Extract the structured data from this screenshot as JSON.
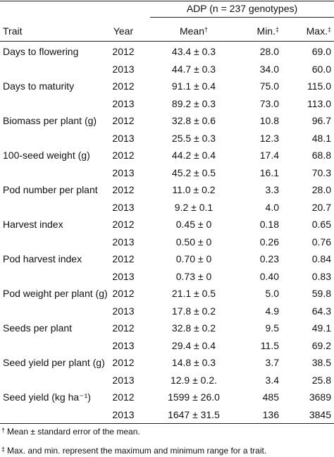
{
  "table": {
    "group_header": "ADP (n = 237 genotypes)",
    "columns": [
      {
        "text": "Trait"
      },
      {
        "text": "Year"
      },
      {
        "text": "Mean",
        "mark": "†"
      },
      {
        "text": "Min.",
        "mark": "‡"
      },
      {
        "text": "Max.",
        "mark": "‡"
      }
    ],
    "traits": [
      {
        "name": "Days to flowering",
        "rows": [
          [
            "2012",
            "43.4 ± 0.3",
            "28.0",
            "69.0"
          ],
          [
            "2013",
            "44.7 ± 0.3",
            "34.0",
            "60.0"
          ]
        ]
      },
      {
        "name": "Days to maturity",
        "rows": [
          [
            "2012",
            "91.1 ± 0.4",
            "75.0",
            "115.0"
          ],
          [
            "2013",
            "89.2 ± 0.3",
            "73.0",
            "113.0"
          ]
        ]
      },
      {
        "name": "Biomass per plant (g)",
        "rows": [
          [
            "2012",
            "32.8 ± 0.6",
            "10.8",
            "96.7"
          ],
          [
            "2013",
            "25.5 ± 0.3",
            "12.3",
            "48.1"
          ]
        ]
      },
      {
        "name": "100-seed weight (g)",
        "rows": [
          [
            "2012",
            "44.2 ± 0.4",
            "17.4",
            "68.8"
          ],
          [
            "2013",
            "45.2 ± 0.5",
            "16.1",
            "70.3"
          ]
        ]
      },
      {
        "name": "Pod number per plant",
        "rows": [
          [
            "2012",
            "11.0 ± 0.2",
            "3.3",
            "28.0"
          ],
          [
            "2013",
            "9.2 ± 0.1",
            "4.0",
            "20.7"
          ]
        ]
      },
      {
        "name": "Harvest index",
        "rows": [
          [
            "2012",
            "0.45 ± 0",
            "0.18",
            "0.65"
          ],
          [
            "2013",
            "0.50 ± 0",
            "0.26",
            "0.76"
          ]
        ]
      },
      {
        "name": "Pod harvest index",
        "rows": [
          [
            "2012",
            "0.70 ± 0",
            "0.23",
            "0.84"
          ],
          [
            "2013",
            "0.73 ± 0",
            "0.40",
            "0.83"
          ]
        ]
      },
      {
        "name": "Pod weight per plant (g)",
        "rows": [
          [
            "2012",
            "21.1 ± 0.5",
            "5.0",
            "59.8"
          ],
          [
            "2013",
            "17.8 ± 0.2",
            "4.9",
            "64.3"
          ]
        ]
      },
      {
        "name": "Seeds per plant",
        "rows": [
          [
            "2012",
            "32.8 ± 0.2",
            "9.5",
            "49.1"
          ],
          [
            "2013",
            "29.4 ± 0.4",
            "11.5",
            "69.2"
          ]
        ]
      },
      {
        "name": "Seed yield per plant (g)",
        "rows": [
          [
            "2012",
            "14.8 ± 0.3",
            "3.7",
            "38.5"
          ],
          [
            "2013",
            "12.9 ± 0.2.",
            "3.4",
            "25.8"
          ]
        ]
      },
      {
        "name": "Seed yield (kg ha⁻¹)",
        "rows": [
          [
            "2012",
            "1599 ± 26.0",
            "485",
            "3689"
          ],
          [
            "2013",
            "1647 ± 31.5",
            "136",
            "3845"
          ]
        ]
      }
    ],
    "footnotes": [
      {
        "mark": "†",
        "text": "Mean ± standard error of the mean."
      },
      {
        "mark": "‡",
        "text": "Max. and min. represent the maximum and minimum range for a trait."
      }
    ]
  }
}
